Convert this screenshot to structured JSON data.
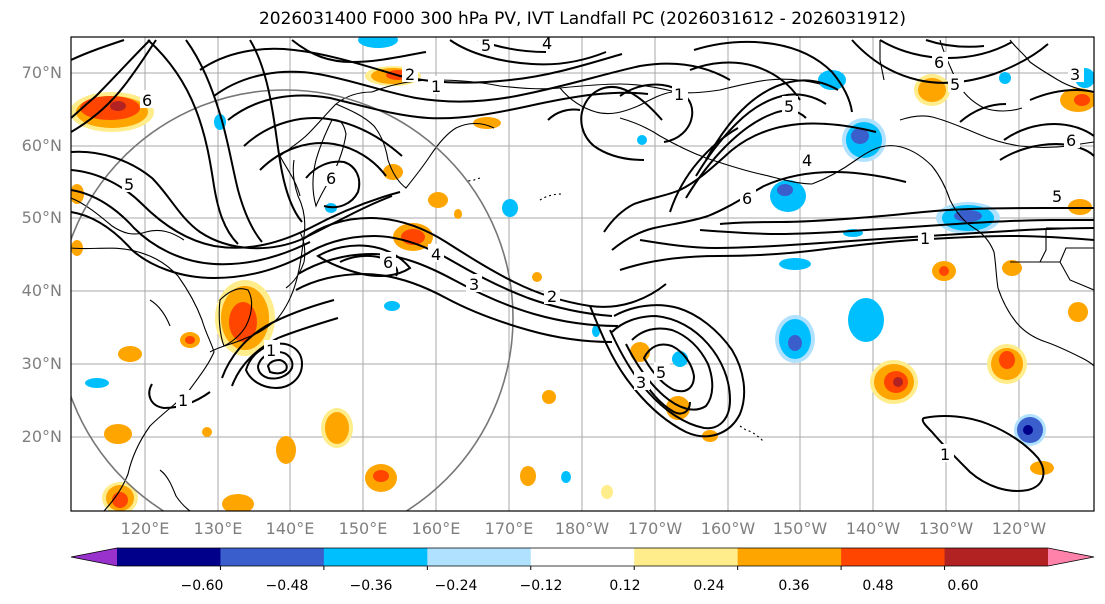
{
  "title": "2026031400 F000 300 hPa PV, IVT Landfall PC (2026031612 - 2026031912)",
  "map": {
    "lat_labels": [
      "70°N",
      "60°N",
      "50°N",
      "40°N",
      "30°N",
      "20°N"
    ],
    "lon_labels": [
      "120°E",
      "130°E",
      "140°E",
      "150°E",
      "160°E",
      "170°E",
      "180°W",
      "170°W",
      "160°W",
      "150°W",
      "140°W",
      "130°W",
      "120°W"
    ],
    "contour_labels": [
      "5",
      "4",
      "2",
      "1",
      "6",
      "5",
      "6",
      "6",
      "4",
      "3",
      "2",
      "1",
      "3",
      "5",
      "5",
      "4",
      "6",
      "1",
      "5",
      "1",
      "1",
      "6",
      "5",
      "6",
      "3",
      "1"
    ]
  },
  "colorbar": {
    "tick_labels": [
      "−0.60",
      "−0.48",
      "−0.36",
      "−0.24",
      "−0.12",
      "0.12",
      "0.24",
      "0.36",
      "0.48",
      "0.60"
    ],
    "colors": [
      "#9932cc",
      "#00008b",
      "#3a5fcd",
      "#00bfff",
      "#b0e2ff",
      "#ffffff",
      "#ffec8b",
      "#ffa500",
      "#ff4500",
      "#b22222",
      "#ff82ab"
    ]
  }
}
